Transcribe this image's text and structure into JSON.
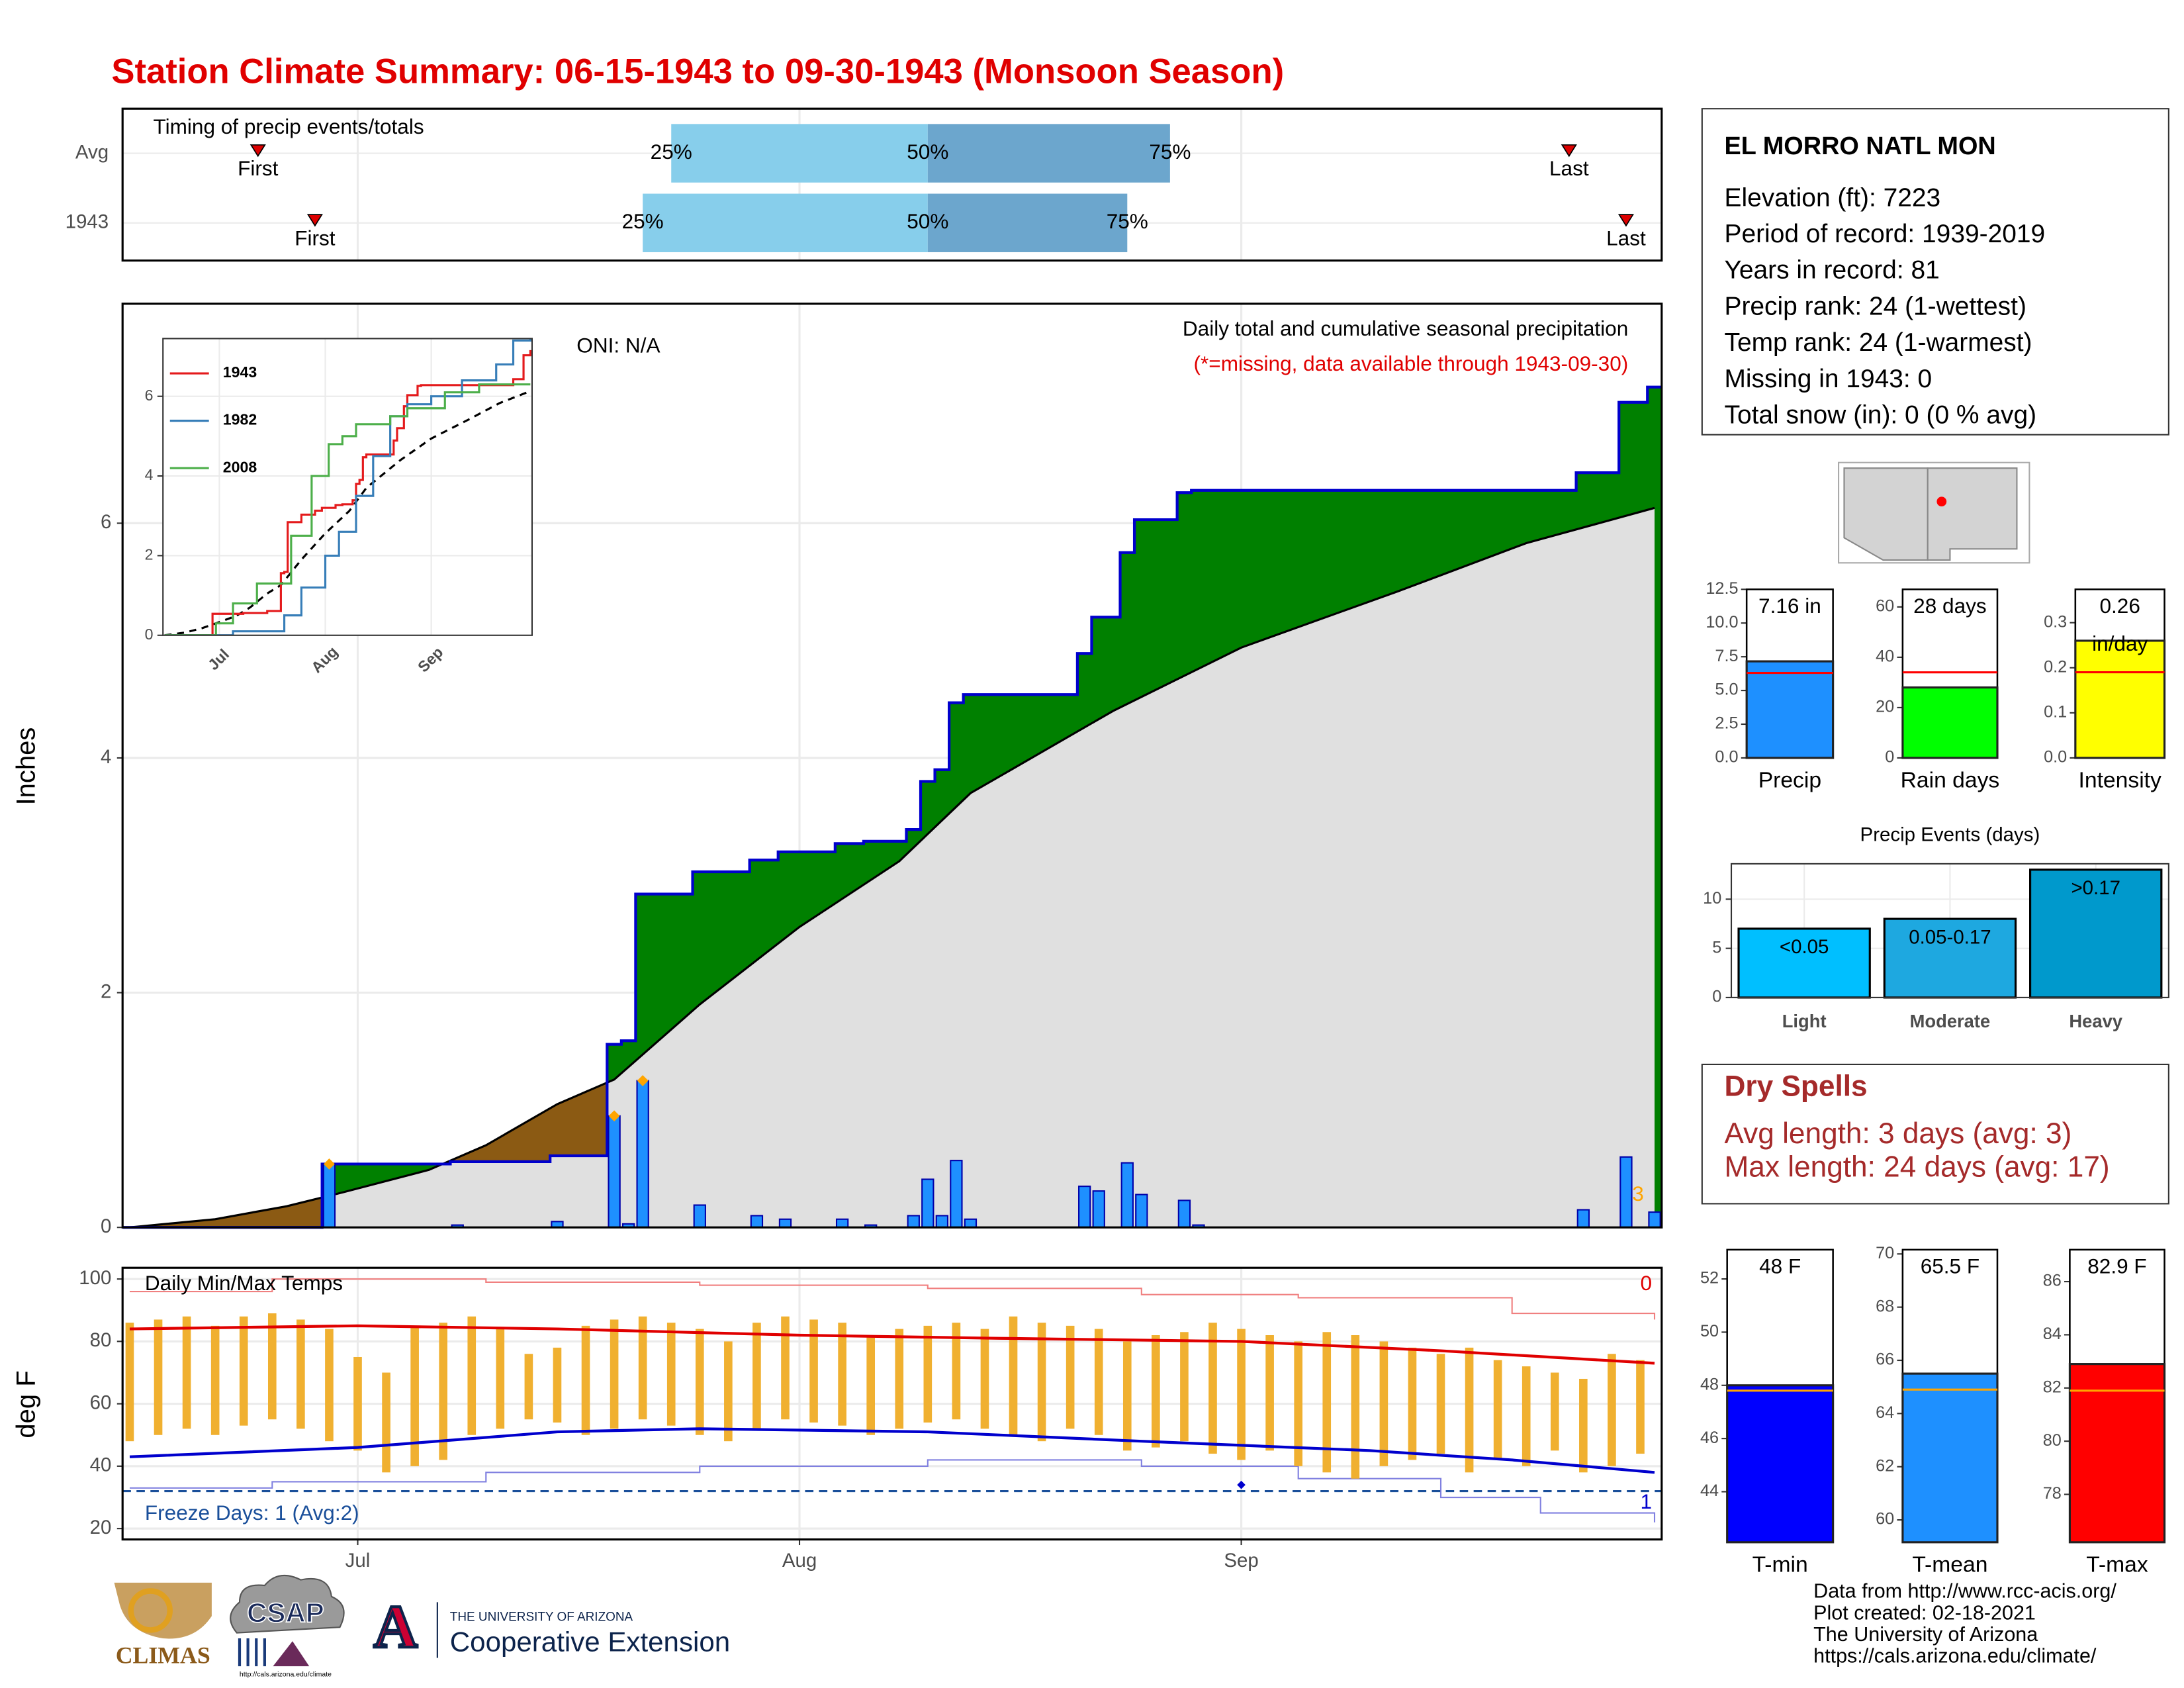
{
  "title": "Station Climate Summary: 06-15-1943 to 09-30-1943 (Monsoon Season)",
  "station": {
    "name": "EL MORRO NATL MON",
    "lines": [
      "Elevation (ft): 7223",
      "Period of record: 1939-2019",
      "Years in record: 81",
      "Precip rank: 24 (1-wettest)",
      "Temp rank: 24 (1-warmest)",
      "Missing in 1943: 0",
      "Total snow (in): 0 (0 % avg)"
    ]
  },
  "dry_spells": {
    "title": "Dry Spells",
    "lines": [
      "Avg length: 3 days (avg: 3)",
      "Max length: 24 days (avg: 17)"
    ]
  },
  "footer": [
    "Data from http://www.rcc-acis.org/",
    "Plot created: 02-18-2021",
    "The University of Arizona",
    "https://cals.arizona.edu/climate/"
  ],
  "logos": {
    "climas": "CLIMAS",
    "csap": "CSAP",
    "csap_url": "http://cals.arizona.edu/climate",
    "arizona_mark": "A",
    "university": "THE UNIVERSITY OF ARIZONA",
    "extension": "Cooperative Extension"
  },
  "chart_data": [
    {
      "type": "timing",
      "title": "Timing of precip events/totals",
      "xlim": [
        "06-15",
        "09-30"
      ],
      "xgrid": [
        "07-01",
        "08-01",
        "09-01"
      ],
      "labels": {
        "first": "First",
        "last": "Last",
        "q25": "25%",
        "q50": "50%",
        "q75": "75%"
      },
      "rows": [
        {
          "name": "Avg",
          "first": "06-24",
          "q25": "07-23",
          "q50": "08-10",
          "q75": "08-27",
          "last": "09-24"
        },
        {
          "name": "1943",
          "first": "06-28",
          "q25": "07-21",
          "q50": "08-10",
          "q75": "08-24",
          "last": "09-28"
        }
      ],
      "early_color": "#87ceeb",
      "late_color": "#6ca6cd",
      "marker_color": "#dd0000"
    },
    {
      "type": "step_area",
      "ylabel": "Inches",
      "oni": "ONI: N/A",
      "subtitle": "Daily total and cumulative seasonal precipitation",
      "note": "(*=missing, data available through 1943-09-30)",
      "count": 3,
      "xlim": [
        "06-15",
        "09-30"
      ],
      "xgrid": [
        "07-01",
        "08-01",
        "09-01"
      ],
      "ylim": [
        0,
        7.87
      ],
      "yticks": [
        0,
        2,
        4,
        6
      ],
      "grid": true,
      "daily": {
        "name": "1943",
        "color": "#1e90ff",
        "x": [
          "06-29",
          "07-08",
          "07-15",
          "07-19",
          "07-20",
          "07-21",
          "07-25",
          "07-29",
          "07-31",
          "08-04",
          "08-06",
          "08-09",
          "08-10",
          "08-11",
          "08-12",
          "08-13",
          "08-21",
          "08-22",
          "08-24",
          "08-25",
          "08-28",
          "08-29",
          "09-25",
          "09-28",
          "09-30"
        ],
        "values": [
          0.54,
          0.02,
          0.05,
          0.95,
          0.03,
          1.25,
          0.19,
          0.1,
          0.07,
          0.07,
          0.02,
          0.1,
          0.41,
          0.1,
          0.57,
          0.07,
          0.35,
          0.31,
          0.55,
          0.28,
          0.23,
          0.02,
          0.15,
          0.6,
          0.13
        ]
      },
      "average": {
        "x": [
          "06-15",
          "06-21",
          "06-26",
          "06-30",
          "07-06",
          "07-10",
          "07-15",
          "07-19",
          "07-25",
          "08-01",
          "08-08",
          "08-13",
          "08-23",
          "09-01",
          "09-12",
          "09-21",
          "09-30"
        ],
        "values": [
          0,
          0.07,
          0.18,
          0.3,
          0.49,
          0.7,
          1.05,
          1.26,
          1.9,
          2.56,
          3.12,
          3.7,
          4.4,
          4.94,
          5.42,
          5.83,
          6.13
        ]
      },
      "highlight_dates": [
        "06-29",
        "07-19",
        "07-21"
      ],
      "highlight_color": "#ffa500",
      "above_color": "#008000",
      "below_color": "#8b5a13",
      "avg_fill": "#e0e0e0",
      "line_color": "#0000cd",
      "count_color": "#ffa500"
    },
    {
      "type": "line",
      "xlim": [
        "06-15",
        "09-30"
      ],
      "ylim": [
        0,
        7.45
      ],
      "yticks": [
        0,
        2,
        4,
        6
      ],
      "xticks": [
        {
          "value": "07-01",
          "label": "Jul"
        },
        {
          "value": "08-01",
          "label": "Aug"
        },
        {
          "value": "09-01",
          "label": "Sep"
        }
      ],
      "series": [
        {
          "name": "1943",
          "color": "#e41a1c",
          "x": [
            "06-15",
            "06-29",
            "07-08",
            "07-15",
            "07-19",
            "07-20",
            "07-21",
            "07-25",
            "07-29",
            "07-31",
            "08-04",
            "08-06",
            "08-09",
            "08-10",
            "08-11",
            "08-12",
            "08-13",
            "08-21",
            "08-22",
            "08-24",
            "08-25",
            "08-28",
            "08-29",
            "09-25",
            "09-28",
            "09-30"
          ],
          "values": [
            0,
            0.54,
            0.56,
            0.61,
            1.56,
            1.59,
            2.84,
            3.03,
            3.13,
            3.2,
            3.27,
            3.29,
            3.39,
            3.8,
            3.9,
            4.47,
            4.54,
            4.89,
            5.2,
            5.75,
            6.03,
            6.26,
            6.28,
            6.43,
            7.03,
            7.16
          ]
        },
        {
          "name": "1982",
          "color": "#377eb8",
          "x": [
            "06-15",
            "07-05",
            "07-20",
            "07-25",
            "08-01",
            "08-05",
            "08-10",
            "08-15",
            "08-20",
            "08-25",
            "09-01",
            "09-10",
            "09-20",
            "09-25",
            "09-30"
          ],
          "values": [
            0,
            0.1,
            0.5,
            1.2,
            2.0,
            2.6,
            3.5,
            4.5,
            5.5,
            5.8,
            6.0,
            6.4,
            6.8,
            7.4,
            7.45
          ]
        },
        {
          "name": "2008",
          "color": "#4daf4a",
          "x": [
            "06-15",
            "06-30",
            "07-05",
            "07-12",
            "07-22",
            "07-28",
            "08-02",
            "08-06",
            "08-10",
            "08-20",
            "08-25",
            "09-05",
            "09-15",
            "09-30"
          ],
          "values": [
            0,
            0.3,
            0.8,
            1.3,
            2.5,
            4.0,
            4.8,
            5.0,
            5.3,
            5.5,
            5.7,
            6.1,
            6.3,
            6.3
          ]
        }
      ],
      "average": {
        "x": [
          "06-15",
          "06-21",
          "06-26",
          "06-30",
          "07-06",
          "07-10",
          "07-15",
          "07-19",
          "07-25",
          "08-01",
          "08-08",
          "08-13",
          "08-23",
          "09-01",
          "09-12",
          "09-21",
          "09-30"
        ],
        "values": [
          0,
          0.07,
          0.18,
          0.3,
          0.49,
          0.7,
          1.05,
          1.26,
          1.9,
          2.56,
          3.12,
          3.7,
          4.4,
          4.94,
          5.42,
          5.83,
          6.13
        ],
        "color": "#000000"
      }
    },
    {
      "type": "range_bar",
      "title": "Daily Min/Max Temps",
      "ylabel": "deg F",
      "xlim": [
        "06-15",
        "09-30"
      ],
      "xticks": [
        {
          "value": "07-01",
          "label": "Jul"
        },
        {
          "value": "08-01",
          "label": "Aug"
        },
        {
          "value": "09-01",
          "label": "Sep"
        }
      ],
      "ylim": [
        16.5,
        103.6
      ],
      "yticks": [
        20,
        40,
        60,
        80,
        100
      ],
      "grid": true,
      "bar_color": "#f0b030",
      "x": [
        "06-15",
        "06-17",
        "06-19",
        "06-21",
        "06-23",
        "06-25",
        "06-27",
        "06-29",
        "07-01",
        "07-03",
        "07-05",
        "07-07",
        "07-09",
        "07-11",
        "07-13",
        "07-15",
        "07-17",
        "07-19",
        "07-21",
        "07-23",
        "07-25",
        "07-27",
        "07-29",
        "07-31",
        "08-02",
        "08-04",
        "08-06",
        "08-08",
        "08-10",
        "08-12",
        "08-14",
        "08-16",
        "08-18",
        "08-20",
        "08-22",
        "08-24",
        "08-26",
        "08-28",
        "08-30",
        "09-01",
        "09-03",
        "09-05",
        "09-07",
        "09-09",
        "09-11",
        "09-13",
        "09-15",
        "09-17",
        "09-19",
        "09-21",
        "09-23",
        "09-25",
        "09-27",
        "09-29"
      ],
      "max": [
        86,
        87,
        88,
        85,
        88,
        89,
        87,
        84,
        75,
        70,
        85,
        86,
        88,
        84,
        76,
        78,
        85,
        87,
        88,
        86,
        84,
        80,
        86,
        88,
        87,
        86,
        82,
        84,
        85,
        86,
        84,
        88,
        86,
        85,
        84,
        80,
        82,
        83,
        86,
        84,
        82,
        80,
        83,
        82,
        80,
        78,
        76,
        78,
        74,
        72,
        70,
        68,
        76,
        74
      ],
      "min": [
        48,
        50,
        52,
        50,
        53,
        55,
        52,
        48,
        45,
        38,
        40,
        42,
        50,
        52,
        55,
        54,
        50,
        52,
        55,
        53,
        50,
        48,
        52,
        55,
        54,
        53,
        50,
        52,
        54,
        55,
        52,
        50,
        48,
        52,
        50,
        45,
        46,
        48,
        44,
        42,
        45,
        40,
        38,
        36,
        40,
        42,
        44,
        38,
        42,
        40,
        45,
        38,
        40,
        44
      ],
      "avg_max": {
        "x": [
          "06-15",
          "07-01",
          "07-15",
          "08-01",
          "08-15",
          "09-01",
          "09-15",
          "09-30"
        ],
        "values": [
          84,
          85,
          84,
          82,
          81,
          80,
          77,
          73
        ],
        "color": "#e00000"
      },
      "avg_min": {
        "x": [
          "06-15",
          "07-01",
          "07-15",
          "07-25",
          "08-10",
          "08-25",
          "09-10",
          "09-20",
          "09-30"
        ],
        "values": [
          43,
          46,
          51,
          52,
          51,
          48,
          45,
          42,
          38
        ],
        "color": "#0000cd"
      },
      "record_high": {
        "x": [
          "06-15",
          "06-25",
          "07-10",
          "07-25",
          "08-10",
          "08-25",
          "09-05",
          "09-20",
          "09-30"
        ],
        "values": [
          96,
          100,
          99,
          98,
          97,
          95,
          94,
          89,
          87
        ],
        "color": "#f08080"
      },
      "record_low": {
        "x": [
          "06-15",
          "06-25",
          "07-10",
          "07-25",
          "08-10",
          "08-25",
          "09-05",
          "09-15",
          "09-22",
          "09-30"
        ],
        "values": [
          33,
          35,
          38,
          40,
          42,
          40,
          36,
          30,
          25,
          22
        ],
        "color": "#8080e0"
      },
      "freeze_line": 32,
      "freeze_label": "Freeze Days: 1 (Avg:2)",
      "freeze_color": "#1a4f9a",
      "hot_count": 0,
      "freeze_count": 1,
      "freeze_marker": {
        "x": "09-01",
        "value": 34
      }
    },
    {
      "type": "summary_bar",
      "label": "Precip",
      "value": 7.16,
      "value_label": [
        "7.16 in"
      ],
      "average": 6.3,
      "ylim": [
        0,
        12.5
      ],
      "yticks": [
        {
          "value": 0,
          "label": "0.0"
        },
        2.5,
        {
          "value": 5,
          "label": "5.0"
        },
        7.5,
        {
          "value": 10,
          "label": "10.0"
        },
        12.5
      ],
      "color": "#1e90ff",
      "avg_color": "#ff0000"
    },
    {
      "type": "summary_bar",
      "label": "Rain days",
      "value": 28,
      "value_label": [
        "28 days"
      ],
      "average": 34,
      "ylim": [
        0,
        67
      ],
      "yticks": [
        0,
        20,
        40,
        60
      ],
      "color": "#00ff00",
      "avg_color": "#ff0000"
    },
    {
      "type": "summary_bar",
      "label": "Intensity",
      "value": 0.26,
      "value_label": [
        "0.26",
        "in/day"
      ],
      "average": 0.19,
      "ylim": [
        0,
        0.374
      ],
      "yticks": [
        {
          "value": 0,
          "label": "0.0"
        },
        0.1,
        0.2,
        0.3
      ],
      "color": "#ffff00",
      "avg_color": "#ff0000"
    },
    {
      "type": "bar",
      "title": "Precip Events (days)",
      "categories": [
        "Light",
        "Moderate",
        "Heavy"
      ],
      "bin_labels": [
        "<0.05",
        "0.05-0.17",
        ">0.17"
      ],
      "values": [
        7,
        8,
        13
      ],
      "colors": [
        "#00bfff",
        "#1ea8e0",
        "#0099cc"
      ],
      "ylim": [
        0,
        13.6
      ],
      "yticks": [
        0,
        5,
        10
      ],
      "grid": true
    },
    {
      "type": "summary_bar",
      "label": "T-min",
      "value": 48,
      "value_label": [
        "48 F"
      ],
      "average": 47.8,
      "ylim": [
        42.1,
        53.1
      ],
      "yticks": [
        44,
        46,
        48,
        50,
        52
      ],
      "color": "#0000ff",
      "avg_color": "#ffa500"
    },
    {
      "type": "summary_bar",
      "label": "T-mean",
      "value": 65.5,
      "value_label": [
        "65.5 F"
      ],
      "average": 64.9,
      "ylim": [
        59.16,
        70.16
      ],
      "yticks": [
        60,
        62,
        64,
        66,
        68,
        70
      ],
      "color": "#1e90ff",
      "avg_color": "#ffa500"
    },
    {
      "type": "summary_bar",
      "label": "T-max",
      "value": 82.9,
      "value_label": [
        "82.9 F"
      ],
      "average": 81.9,
      "ylim": [
        76.2,
        87.2
      ],
      "yticks": [
        78,
        80,
        82,
        84,
        86
      ],
      "color": "#ff0000",
      "avg_color": "#ffa500"
    }
  ]
}
